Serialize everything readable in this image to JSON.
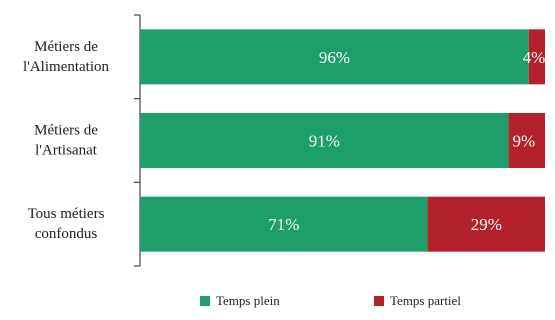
{
  "chart_data": {
    "type": "bar",
    "orientation": "horizontal",
    "stacked": true,
    "percent": true,
    "categories": [
      [
        "Métiers de",
        "l'Alimentation"
      ],
      [
        "Métiers de",
        "l'Artisanat"
      ],
      [
        "Tous métiers",
        "confondus"
      ]
    ],
    "series": [
      {
        "name": "Temps plein",
        "values": [
          96,
          91,
          71
        ],
        "labels": [
          "96%",
          "91%",
          "71%"
        ],
        "color": "#1e9e6a"
      },
      {
        "name": "Temps partiel",
        "values": [
          4,
          9,
          29
        ],
        "labels": [
          "4%",
          "9%",
          "29%"
        ],
        "color": "#b3222a"
      }
    ],
    "xlim": [
      0,
      100
    ],
    "grid": false,
    "legend_position": "bottom"
  }
}
